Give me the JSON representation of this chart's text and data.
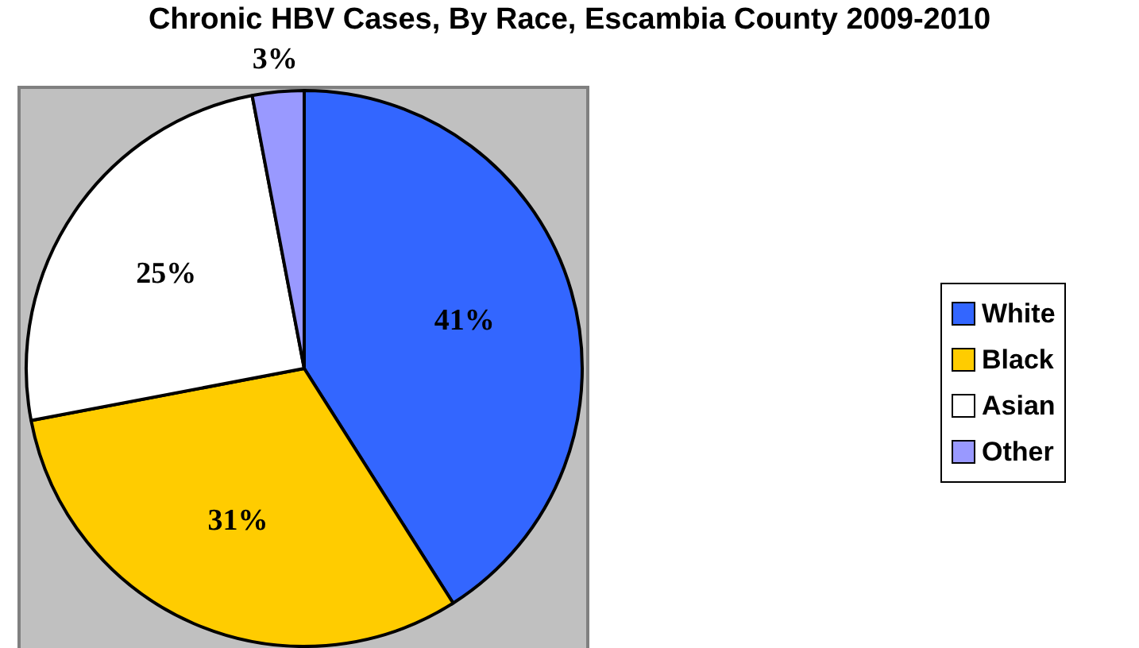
{
  "chart_data": {
    "type": "pie",
    "title": "Chronic HBV Cases, By Race, Escambia County 2009-2010",
    "categories": [
      "White",
      "Black",
      "Asian",
      "Other"
    ],
    "values": [
      41,
      31,
      25,
      3
    ],
    "colors": [
      "#3366ff",
      "#ffcc00",
      "#ffffff",
      "#9999ff"
    ],
    "value_labels": [
      "41%",
      "31%",
      "25%",
      "3%"
    ],
    "legend": "right"
  }
}
